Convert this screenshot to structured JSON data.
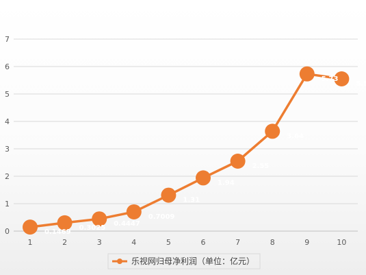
{
  "chart_data": {
    "type": "line",
    "x": [
      1,
      2,
      3,
      4,
      5,
      6,
      7,
      8,
      9,
      10
    ],
    "series": [
      {
        "name": "乐视网归母净利润（单位：亿元）",
        "values": [
          0.1469,
          0.3025,
          0.4447,
          0.7009,
          1.31,
          1.94,
          2.55,
          3.64,
          5.73,
          5.55
        ],
        "labels": [
          "0.1469",
          "0.3025",
          "0.4447",
          "0.7009",
          "1.31",
          "1.94",
          "2.55",
          "3.64",
          "5.73",
          "5.55"
        ]
      }
    ],
    "ylim": [
      0,
      7
    ],
    "yticks": [
      "0",
      "1",
      "2",
      "3",
      "4",
      "5",
      "6",
      "7"
    ],
    "xticks": [
      "1",
      "2",
      "3",
      "4",
      "5",
      "6",
      "7",
      "8",
      "9",
      "10"
    ],
    "grid": true,
    "legend_position": "bottom",
    "colors": {
      "series": "#ED7D31",
      "grid": "#D9D9D9",
      "axis_text": "#595959",
      "data_label": "#FFFFFF"
    }
  }
}
